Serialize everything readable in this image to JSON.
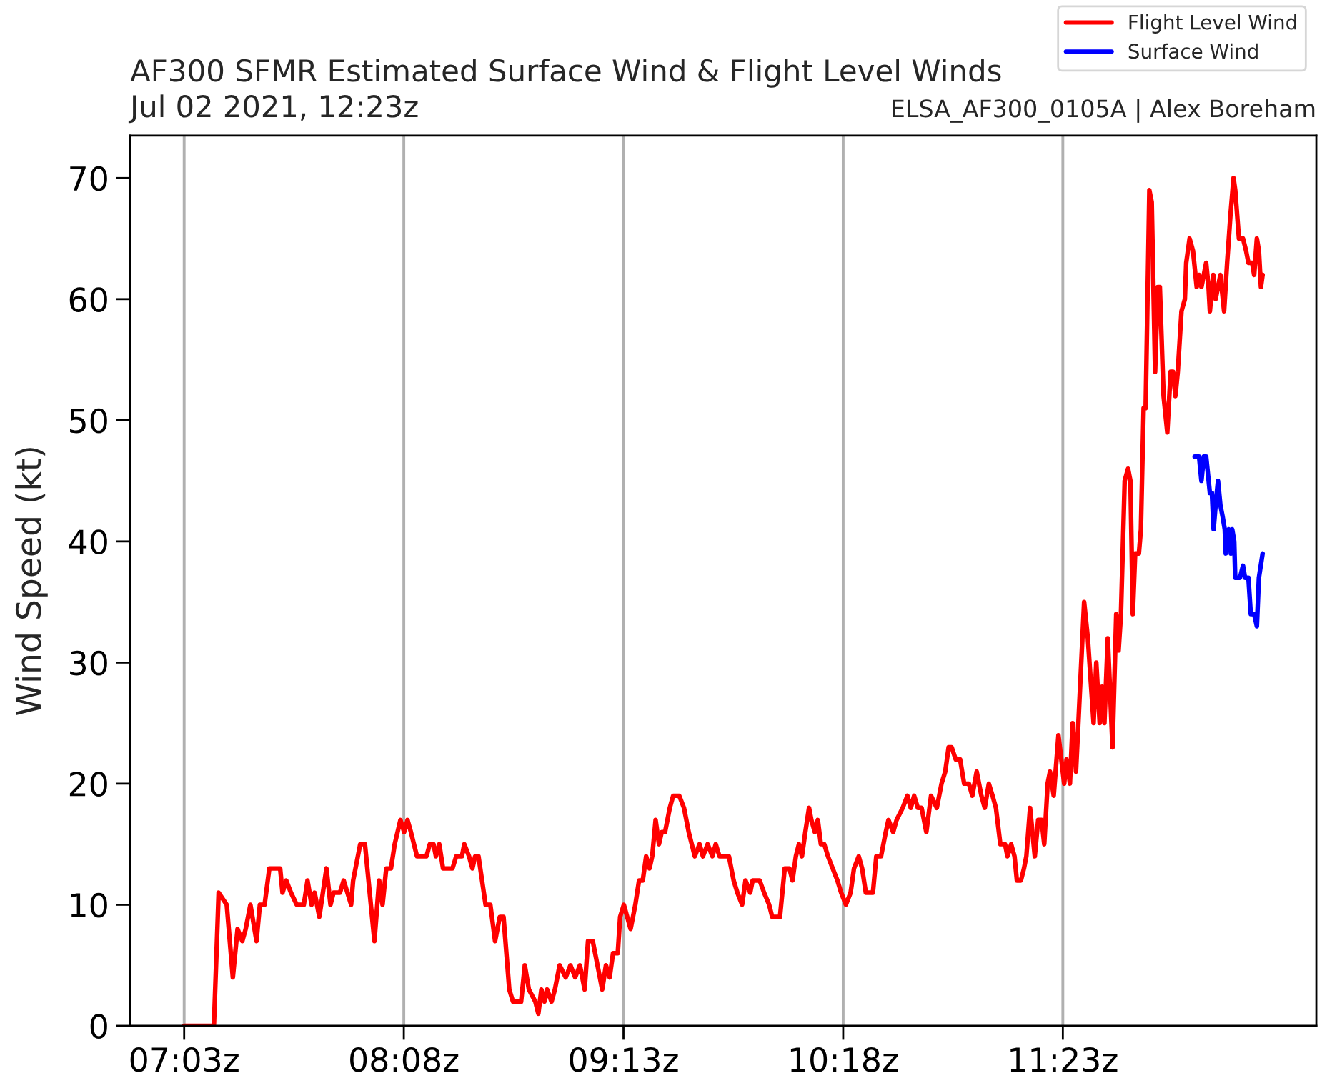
{
  "chart_data": {
    "type": "line",
    "title": "AF300 SFMR Estimated Surface Wind & Flight Level Winds",
    "subtitle": "Jul 02 2021, 12:23z",
    "ylabel": "Wind Speed (kt)",
    "annotations": [
      "ELSA_AF300_0105A | Alex Boreham"
    ],
    "xlim": [
      "2021-07-02T06:47",
      "2021-07-02T12:38"
    ],
    "xticks": [
      {
        "value": "2021-07-02T07:03",
        "label": "07:03z"
      },
      {
        "value": "2021-07-02T08:08",
        "label": "08:08z"
      },
      {
        "value": "2021-07-02T09:13",
        "label": "09:13z"
      },
      {
        "value": "2021-07-02T10:18",
        "label": "10:18z"
      },
      {
        "value": "2021-07-02T11:23",
        "label": "11:23z"
      }
    ],
    "ylim": [
      0,
      73.5
    ],
    "yticks": [
      0,
      10,
      20,
      30,
      40,
      50,
      60,
      70
    ],
    "grid": "x",
    "legend": "top right",
    "line_style": "solid",
    "series": [
      {
        "name": "Flight Level Wind",
        "color": "#ff0000",
        "x": [
          "2021-07-02T07:03:00",
          "2021-07-02T07:11:48",
          "2021-07-02T07:13:12",
          "2021-07-02T07:15:36",
          "2021-07-02T07:17:24",
          "2021-07-02T07:18:48",
          "2021-07-02T07:20:12",
          "2021-07-02T07:21:12",
          "2021-07-02T07:22:36",
          "2021-07-02T07:24:24",
          "2021-07-02T07:25:24",
          "2021-07-02T07:26:48",
          "2021-07-02T07:28:12",
          "2021-07-02T07:31:24",
          "2021-07-02T07:32:06",
          "2021-07-02T07:33:12",
          "2021-07-02T07:34:36",
          "2021-07-02T07:36:18",
          "2021-07-02T07:38:24",
          "2021-07-02T07:39:30",
          "2021-07-02T07:40:42",
          "2021-07-02T07:41:36",
          "2021-07-02T07:43:00",
          "2021-07-02T07:45:06",
          "2021-07-02T07:46:18",
          "2021-07-02T07:47:12",
          "2021-07-02T07:49:06",
          "2021-07-02T07:50:12",
          "2021-07-02T07:52:24",
          "2021-07-02T07:53:00",
          "2021-07-02T07:55:06",
          "2021-07-02T07:56:30",
          "2021-07-02T07:59:18",
          "2021-07-02T08:00:42",
          "2021-07-02T08:01:42",
          "2021-07-02T08:02:48",
          "2021-07-02T08:04:12",
          "2021-07-02T08:05:18",
          "2021-07-02T08:07:00",
          "2021-07-02T08:08:06",
          "2021-07-02T08:09:06",
          "2021-07-02T08:10:06",
          "2021-07-02T08:11:54",
          "2021-07-02T08:14:42",
          "2021-07-02T08:15:42",
          "2021-07-02T08:16:48",
          "2021-07-02T08:17:30",
          "2021-07-02T08:18:30",
          "2021-07-02T08:19:36",
          "2021-07-02T08:22:24",
          "2021-07-02T08:23:30",
          "2021-07-02T08:25:12",
          "2021-07-02T08:25:54",
          "2021-07-02T08:27:18",
          "2021-07-02T08:28:18",
          "2021-07-02T08:29:06",
          "2021-07-02T08:30:06",
          "2021-07-02T08:32:12",
          "2021-07-02T08:33:36",
          "2021-07-02T08:35:00",
          "2021-07-02T08:36:24",
          "2021-07-02T08:37:30",
          "2021-07-02T08:39:12",
          "2021-07-02T08:40:18",
          "2021-07-02T08:42:42",
          "2021-07-02T08:43:48",
          "2021-07-02T08:45:00",
          "2021-07-02T08:46:54",
          "2021-07-02T08:47:48",
          "2021-07-02T08:48:42",
          "2021-07-02T08:49:36",
          "2021-07-02T08:50:24",
          "2021-07-02T08:51:42",
          "2021-07-02T08:52:42",
          "2021-07-02T08:54:06",
          "2021-07-02T08:55:54",
          "2021-07-02T08:57:18",
          "2021-07-02T08:58:42",
          "2021-07-02T09:00:06",
          "2021-07-02T09:01:30",
          "2021-07-02T09:02:30",
          "2021-07-02T09:03:54",
          "2021-07-02T09:05:18",
          "2021-07-02T09:06:42",
          "2021-07-02T09:07:48",
          "2021-07-02T09:08:54",
          "2021-07-02T09:09:54",
          "2021-07-02T09:11:18",
          "2021-07-02T09:12:00",
          "2021-07-02T09:13:06",
          "2021-07-02T09:14:06",
          "2021-07-02T09:15:06",
          "2021-07-02T09:16:30",
          "2021-07-02T09:17:36",
          "2021-07-02T09:18:42",
          "2021-07-02T09:19:42",
          "2021-07-02T09:20:42",
          "2021-07-02T09:21:30",
          "2021-07-02T09:22:30",
          "2021-07-02T09:23:30",
          "2021-07-02T09:24:18",
          "2021-07-02T09:25:18",
          "2021-07-02T09:26:42",
          "2021-07-02T09:27:42",
          "2021-07-02T09:29:30",
          "2021-07-02T09:30:54",
          "2021-07-02T09:32:18",
          "2021-07-02T09:34:06",
          "2021-07-02T09:35:30",
          "2021-07-02T09:36:30",
          "2021-07-02T09:37:54",
          "2021-07-02T09:39:18",
          "2021-07-02T09:40:18",
          "2021-07-02T09:41:24",
          "2021-07-02T09:44:12",
          "2021-07-02T09:45:36",
          "2021-07-02T09:46:42",
          "2021-07-02T09:48:06",
          "2021-07-02T09:49:06",
          "2021-07-02T09:50:30",
          "2021-07-02T09:51:12",
          "2021-07-02T09:53:18",
          "2021-07-02T09:54:36",
          "2021-07-02T09:56:06",
          "2021-07-02T09:57:00",
          "2021-07-02T09:59:18",
          "2021-07-02T10:00:42",
          "2021-07-02T10:02:06",
          "2021-07-02T10:03:00",
          "2021-07-02T10:04:00",
          "2021-07-02T10:04:54",
          "2021-07-02T10:05:48",
          "2021-07-02T10:06:48",
          "2021-07-02T10:07:54",
          "2021-07-02T10:08:36",
          "2021-07-02T10:09:36",
          "2021-07-02T10:10:30",
          "2021-07-02T10:11:24",
          "2021-07-02T10:12:24",
          "2021-07-02T10:13:30",
          "2021-07-02T10:14:54",
          "2021-07-02T10:16:18",
          "2021-07-02T10:17:24",
          "2021-07-02T10:18:48",
          "2021-07-02T10:20:12",
          "2021-07-02T10:21:12",
          "2021-07-02T10:22:36",
          "2021-07-02T10:23:36",
          "2021-07-02T10:24:42",
          "2021-07-02T10:26:48",
          "2021-07-02T10:27:48",
          "2021-07-02T10:29:12",
          "2021-07-02T10:30:36",
          "2021-07-02T10:31:24",
          "2021-07-02T10:32:48",
          "2021-07-02T10:33:48",
          "2021-07-02T10:35:36",
          "2021-07-02T10:37:00",
          "2021-07-02T10:38:00",
          "2021-07-02T10:39:00",
          "2021-07-02T10:40:06",
          "2021-07-02T10:41:12",
          "2021-07-02T10:42:36",
          "2021-07-02T10:44:00",
          "2021-07-02T10:45:42",
          "2021-07-02T10:47:06",
          "2021-07-02T10:48:12",
          "2021-07-02T10:49:12",
          "2021-07-02T10:50:06",
          "2021-07-02T10:51:18",
          "2021-07-02T10:52:36",
          "2021-07-02T10:53:48",
          "2021-07-02T10:55:12",
          "2021-07-02T10:56:12",
          "2021-07-02T10:57:30",
          "2021-07-02T10:58:54",
          "2021-07-02T10:59:54",
          "2021-07-02T11:01:06",
          "2021-07-02T11:02:12",
          "2021-07-02T11:03:12",
          "2021-07-02T11:04:30",
          "2021-07-02T11:05:54",
          "2021-07-02T11:06:36",
          "2021-07-02T11:07:42",
          "2021-07-02T11:08:42",
          "2021-07-02T11:09:24",
          "2021-07-02T11:10:36",
          "2021-07-02T11:11:30",
          "2021-07-02T11:12:12",
          "2021-07-02T11:13:18",
          "2021-07-02T11:14:42",
          "2021-07-02T11:15:42",
          "2021-07-02T11:16:42",
          "2021-07-02T11:17:30",
          "2021-07-02T11:18:30",
          "2021-07-02T11:19:12",
          "2021-07-02T11:20:18",
          "2021-07-02T11:21:42",
          "2021-07-02T11:23:24",
          "2021-07-02T11:24:06",
          "2021-07-02T11:25:06",
          "2021-07-02T11:25:54",
          "2021-07-02T11:26:54",
          "2021-07-02T11:27:36",
          "2021-07-02T11:29:18",
          "2021-07-02T11:30:24",
          "2021-07-02T11:32:06",
          "2021-07-02T11:32:54",
          "2021-07-02T11:33:54",
          "2021-07-02T11:34:36",
          "2021-07-02T11:35:18",
          "2021-07-02T11:36:18",
          "2021-07-02T11:37:42",
          "2021-07-02T11:38:48",
          "2021-07-02T11:39:30",
          "2021-07-02T11:40:12",
          "2021-07-02T11:40:42",
          "2021-07-02T11:41:18",
          "2021-07-02T11:42:18",
          "2021-07-02T11:43:00",
          "2021-07-02T11:43:42",
          "2021-07-02T11:44:24",
          "2021-07-02T11:45:30",
          "2021-07-02T11:46:06",
          "2021-07-02T11:46:54",
          "2021-07-02T11:47:30",
          "2021-07-02T11:48:36",
          "2021-07-02T11:49:18",
          "2021-07-02T11:50:18",
          "2021-07-02T11:51:06",
          "2021-07-02T11:51:42",
          "2021-07-02T11:52:48",
          "2021-07-02T11:53:54",
          "2021-07-02T11:54:54",
          "2021-07-02T11:55:36",
          "2021-07-02T11:56:18",
          "2021-07-02T11:57:00",
          "2021-07-02T11:58:06",
          "2021-07-02T11:59:06",
          "2021-07-02T11:59:30",
          "2021-07-02T12:00:30",
          "2021-07-02T12:01:30",
          "2021-07-02T12:02:36",
          "2021-07-02T12:03:18",
          "2021-07-02T12:04:00",
          "2021-07-02T12:04:42",
          "2021-07-02T12:05:24",
          "2021-07-02T12:06:06",
          "2021-07-02T12:06:30",
          "2021-07-02T12:07:30",
          "2021-07-02T12:08:12",
          "2021-07-02T12:08:54",
          "2021-07-02T12:09:36",
          "2021-07-02T12:10:42",
          "2021-07-02T12:11:36",
          "2021-07-02T12:12:36",
          "2021-07-02T12:13:30",
          "2021-07-02T12:14:00",
          "2021-07-02T12:15:06",
          "2021-07-02T12:16:18",
          "2021-07-02T12:17:12",
          "2021-07-02T12:17:54",
          "2021-07-02T12:19:00",
          "2021-07-02T12:19:36",
          "2021-07-02T12:20:24",
          "2021-07-02T12:21:00",
          "2021-07-02T12:21:36",
          "2021-07-02T12:22:06"
        ],
        "values": [
          0,
          0,
          11,
          10,
          4,
          8,
          7,
          8,
          10,
          7,
          10,
          10,
          13,
          13,
          11,
          12,
          11,
          10,
          10,
          12,
          10,
          11,
          9,
          13,
          10,
          11,
          11,
          12,
          10,
          12,
          15,
          15,
          7,
          12,
          10,
          13,
          13,
          15,
          17,
          16,
          17,
          16,
          14,
          14,
          15,
          15,
          14,
          15,
          13,
          13,
          14,
          14,
          15,
          14,
          13,
          14,
          14,
          10,
          10,
          7,
          9,
          9,
          3,
          2,
          2,
          5,
          3,
          2,
          1,
          3,
          2,
          3,
          2,
          3,
          5,
          4,
          5,
          4,
          5,
          3,
          7,
          7,
          5,
          3,
          5,
          4,
          6,
          6,
          9,
          10,
          9,
          8,
          10,
          12,
          12,
          14,
          13,
          14,
          17,
          15,
          16,
          16,
          18,
          19,
          19,
          18,
          16,
          14,
          15,
          14,
          15,
          14,
          15,
          14,
          14,
          12,
          11,
          10,
          12,
          11,
          12,
          12,
          11,
          10,
          9,
          9,
          13,
          13,
          12,
          14,
          15,
          14,
          16,
          18,
          17,
          16,
          17,
          15,
          15,
          14,
          13,
          12,
          11,
          10,
          11,
          13,
          14,
          13,
          11,
          11,
          14,
          14,
          16,
          17,
          16,
          17,
          18,
          19,
          18,
          19,
          18,
          18,
          16,
          19,
          18,
          20,
          21,
          23,
          23,
          22,
          22,
          20,
          20,
          19,
          21,
          19,
          18,
          20,
          19,
          18,
          15,
          15,
          14,
          15,
          14,
          12,
          12,
          13,
          14,
          18,
          14,
          17,
          17,
          15,
          20,
          21,
          19,
          24,
          20,
          22,
          20,
          25,
          21,
          25,
          35,
          32,
          25,
          30,
          25,
          28,
          25,
          32,
          23,
          34,
          31,
          34,
          39,
          45,
          46,
          45,
          34,
          39,
          39,
          41,
          51,
          51,
          69,
          68,
          54,
          61,
          61,
          52,
          49,
          54,
          54,
          52,
          54,
          59,
          60,
          63,
          65,
          64,
          61,
          62,
          61,
          62,
          63,
          61,
          59,
          62,
          60,
          61,
          62,
          59,
          63,
          67,
          70,
          69,
          65,
          65,
          64,
          63,
          63,
          62,
          65,
          64,
          61,
          62
        ]
      },
      {
        "name": "Surface Wind",
        "color": "#0000ff",
        "x": [
          "2021-07-02T12:02:00",
          "2021-07-02T12:03:18",
          "2021-07-02T12:04:00",
          "2021-07-02T12:04:42",
          "2021-07-02T12:05:24",
          "2021-07-02T12:06:30",
          "2021-07-02T12:07:06",
          "2021-07-02T12:07:36",
          "2021-07-02T12:08:12",
          "2021-07-02T12:08:54",
          "2021-07-02T12:09:36",
          "2021-07-02T12:10:18",
          "2021-07-02T12:10:54",
          "2021-07-02T12:11:12",
          "2021-07-02T12:12:06",
          "2021-07-02T12:12:42",
          "2021-07-02T12:13:06",
          "2021-07-02T12:13:42",
          "2021-07-02T12:14:00",
          "2021-07-02T12:15:24",
          "2021-07-02T12:16:18",
          "2021-07-02T12:16:54",
          "2021-07-02T12:17:54",
          "2021-07-02T12:18:36",
          "2021-07-02T12:19:36",
          "2021-07-02T12:20:24",
          "2021-07-02T12:21:00",
          "2021-07-02T12:22:06"
        ],
        "values": [
          47,
          47,
          45,
          47,
          47,
          44,
          44,
          41,
          43,
          45,
          43,
          42,
          41,
          39,
          41,
          39,
          41,
          40,
          37,
          37,
          38,
          37,
          37,
          34,
          34,
          33,
          37,
          39
        ]
      }
    ]
  }
}
